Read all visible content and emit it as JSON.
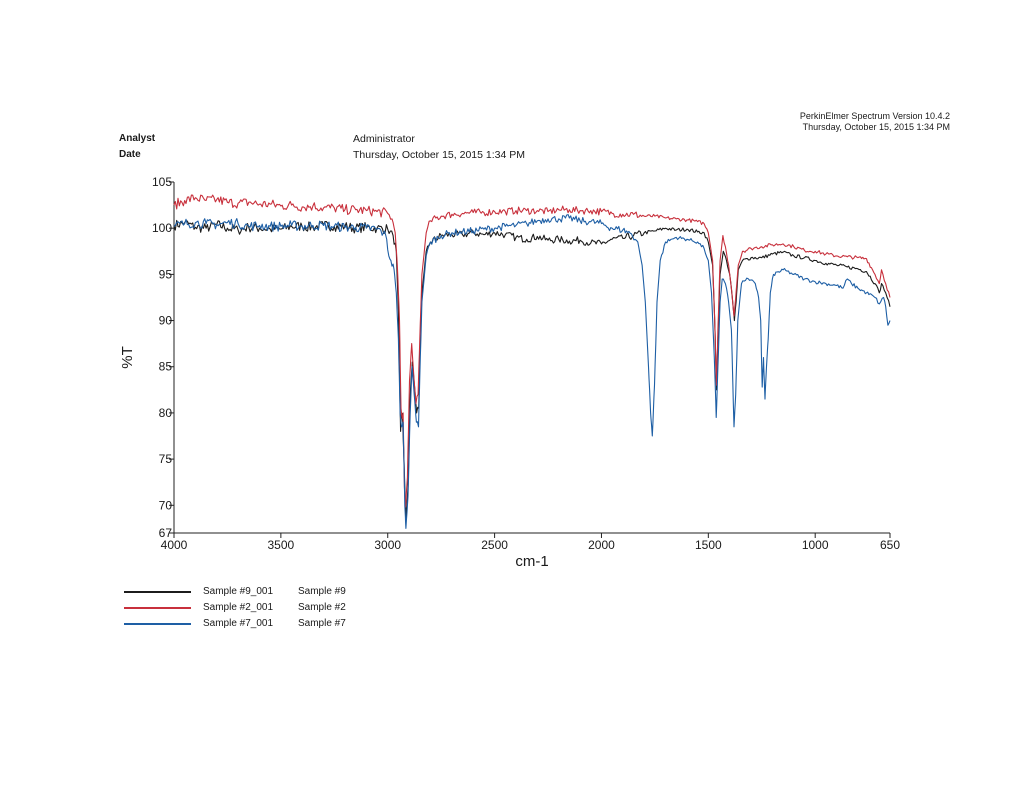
{
  "header": {
    "software": "PerkinElmer Spectrum Version 10.4.2",
    "timestamp": "Thursday, October 15, 2015 1:34 PM"
  },
  "meta": {
    "analyst_label": "Analyst",
    "analyst_value": "Administrator",
    "date_label": "Date",
    "date_value": "Thursday, October 15, 2015 1:34 PM"
  },
  "chart_data": {
    "type": "line",
    "xlabel": "cm-1",
    "ylabel": "%T",
    "xlim": [
      4000,
      650
    ],
    "ylim": [
      67,
      105
    ],
    "x_reversed": true,
    "grid": false,
    "legend_placement": "bottom-left",
    "x_ticks": [
      4000,
      3500,
      3000,
      2500,
      2000,
      1500,
      1000,
      650
    ],
    "y_ticks": [
      67,
      70,
      75,
      80,
      85,
      90,
      95,
      100,
      105
    ],
    "series": [
      {
        "name": "Sample #9_001",
        "description": "Sample #9",
        "color": "#1c1c1c",
        "points": [
          [
            4000,
            100.3
          ],
          [
            3950,
            100.6
          ],
          [
            3900,
            100.1
          ],
          [
            3850,
            100.0
          ],
          [
            3800,
            100.4
          ],
          [
            3750,
            100.0
          ],
          [
            3700,
            99.8
          ],
          [
            3650,
            100.1
          ],
          [
            3600,
            100.0
          ],
          [
            3550,
            99.9
          ],
          [
            3500,
            99.9
          ],
          [
            3450,
            100.2
          ],
          [
            3400,
            100.2
          ],
          [
            3350,
            100.1
          ],
          [
            3300,
            100.3
          ],
          [
            3250,
            100.2
          ],
          [
            3200,
            100.2
          ],
          [
            3150,
            100.0
          ],
          [
            3100,
            100.1
          ],
          [
            3050,
            100.0
          ],
          [
            3000,
            99.9
          ],
          [
            2975,
            99.2
          ],
          [
            2960,
            97.5
          ],
          [
            2950,
            91.0
          ],
          [
            2940,
            78.0
          ],
          [
            2935,
            80.0
          ],
          [
            2930,
            79.0
          ],
          [
            2920,
            72.0
          ],
          [
            2915,
            68.5
          ],
          [
            2905,
            72.0
          ],
          [
            2895,
            82.0
          ],
          [
            2885,
            85.5
          ],
          [
            2875,
            83.0
          ],
          [
            2865,
            80.0
          ],
          [
            2855,
            80.5
          ],
          [
            2850,
            86.0
          ],
          [
            2840,
            93.0
          ],
          [
            2820,
            97.5
          ],
          [
            2800,
            98.5
          ],
          [
            2750,
            99.2
          ],
          [
            2700,
            99.3
          ],
          [
            2650,
            99.3
          ],
          [
            2600,
            99.5
          ],
          [
            2550,
            99.3
          ],
          [
            2500,
            99.5
          ],
          [
            2450,
            99.3
          ],
          [
            2400,
            99.0
          ],
          [
            2350,
            98.8
          ],
          [
            2300,
            99.1
          ],
          [
            2250,
            98.7
          ],
          [
            2200,
            98.8
          ],
          [
            2150,
            98.6
          ],
          [
            2100,
            98.7
          ],
          [
            2050,
            98.4
          ],
          [
            2000,
            98.3
          ],
          [
            1950,
            98.8
          ],
          [
            1900,
            98.9
          ],
          [
            1850,
            99.2
          ],
          [
            1800,
            99.5
          ],
          [
            1750,
            99.7
          ],
          [
            1700,
            100.0
          ],
          [
            1650,
            99.8
          ],
          [
            1600,
            99.9
          ],
          [
            1550,
            99.6
          ],
          [
            1520,
            99.5
          ],
          [
            1500,
            98.5
          ],
          [
            1480,
            96.0
          ],
          [
            1470,
            90.0
          ],
          [
            1462,
            82.5
          ],
          [
            1455,
            88.0
          ],
          [
            1445,
            95.0
          ],
          [
            1430,
            97.5
          ],
          [
            1415,
            96.5
          ],
          [
            1400,
            95.0
          ],
          [
            1390,
            93.0
          ],
          [
            1378,
            90.0
          ],
          [
            1370,
            92.0
          ],
          [
            1360,
            95.5
          ],
          [
            1340,
            96.5
          ],
          [
            1300,
            96.8
          ],
          [
            1250,
            96.8
          ],
          [
            1200,
            97.2
          ],
          [
            1150,
            97.4
          ],
          [
            1100,
            97.0
          ],
          [
            1050,
            96.8
          ],
          [
            1000,
            96.5
          ],
          [
            950,
            96.2
          ],
          [
            900,
            96.0
          ],
          [
            850,
            95.8
          ],
          [
            800,
            95.6
          ],
          [
            760,
            95.3
          ],
          [
            720,
            94.0
          ],
          [
            700,
            93.0
          ],
          [
            690,
            94.0
          ],
          [
            670,
            93.0
          ],
          [
            650,
            91.5
          ]
        ]
      },
      {
        "name": "Sample #2_001",
        "description": "Sample #2",
        "color": "#c8303c",
        "points": [
          [
            4000,
            102.5
          ],
          [
            3950,
            103.0
          ],
          [
            3900,
            103.3
          ],
          [
            3850,
            103.0
          ],
          [
            3800,
            103.1
          ],
          [
            3750,
            102.8
          ],
          [
            3700,
            102.7
          ],
          [
            3650,
            102.8
          ],
          [
            3600,
            102.6
          ],
          [
            3550,
            102.6
          ],
          [
            3500,
            102.4
          ],
          [
            3450,
            102.5
          ],
          [
            3400,
            102.3
          ],
          [
            3350,
            102.4
          ],
          [
            3300,
            102.2
          ],
          [
            3250,
            102.2
          ],
          [
            3200,
            102.0
          ],
          [
            3150,
            102.0
          ],
          [
            3100,
            101.9
          ],
          [
            3050,
            101.8
          ],
          [
            3000,
            101.6
          ],
          [
            2980,
            101.0
          ],
          [
            2965,
            99.5
          ],
          [
            2955,
            96.0
          ],
          [
            2945,
            90.0
          ],
          [
            2938,
            80.5
          ],
          [
            2933,
            79.5
          ],
          [
            2928,
            80.0
          ],
          [
            2922,
            72.0
          ],
          [
            2917,
            69.8
          ],
          [
            2908,
            73.0
          ],
          [
            2898,
            83.5
          ],
          [
            2888,
            87.5
          ],
          [
            2878,
            84.0
          ],
          [
            2868,
            81.0
          ],
          [
            2858,
            82.0
          ],
          [
            2850,
            88.0
          ],
          [
            2840,
            95.0
          ],
          [
            2820,
            99.5
          ],
          [
            2800,
            100.8
          ],
          [
            2750,
            101.3
          ],
          [
            2700,
            101.5
          ],
          [
            2650,
            101.6
          ],
          [
            2600,
            101.7
          ],
          [
            2550,
            101.7
          ],
          [
            2500,
            101.8
          ],
          [
            2450,
            101.8
          ],
          [
            2400,
            101.9
          ],
          [
            2350,
            101.9
          ],
          [
            2300,
            101.9
          ],
          [
            2250,
            101.8
          ],
          [
            2200,
            102.0
          ],
          [
            2150,
            102.0
          ],
          [
            2100,
            101.9
          ],
          [
            2050,
            101.9
          ],
          [
            2000,
            101.8
          ],
          [
            1950,
            101.6
          ],
          [
            1900,
            101.5
          ],
          [
            1850,
            101.5
          ],
          [
            1800,
            101.3
          ],
          [
            1750,
            101.3
          ],
          [
            1700,
            101.1
          ],
          [
            1650,
            101.0
          ],
          [
            1600,
            100.9
          ],
          [
            1550,
            100.7
          ],
          [
            1520,
            100.5
          ],
          [
            1500,
            99.5
          ],
          [
            1480,
            96.5
          ],
          [
            1470,
            90.0
          ],
          [
            1462,
            83.0
          ],
          [
            1455,
            89.0
          ],
          [
            1445,
            96.5
          ],
          [
            1432,
            99.2
          ],
          [
            1420,
            98.0
          ],
          [
            1405,
            96.0
          ],
          [
            1392,
            93.5
          ],
          [
            1380,
            90.5
          ],
          [
            1372,
            92.5
          ],
          [
            1360,
            96.0
          ],
          [
            1340,
            97.5
          ],
          [
            1300,
            97.8
          ],
          [
            1250,
            98.0
          ],
          [
            1200,
            98.2
          ],
          [
            1150,
            98.3
          ],
          [
            1100,
            98.0
          ],
          [
            1050,
            97.6
          ],
          [
            1000,
            97.5
          ],
          [
            950,
            97.2
          ],
          [
            900,
            97.0
          ],
          [
            850,
            96.9
          ],
          [
            800,
            96.8
          ],
          [
            760,
            96.7
          ],
          [
            720,
            95.0
          ],
          [
            700,
            94.0
          ],
          [
            690,
            95.5
          ],
          [
            670,
            94.0
          ],
          [
            650,
            92.5
          ]
        ]
      },
      {
        "name": "Sample #7_001",
        "description": "Sample #7",
        "color": "#1e5fa5",
        "points": [
          [
            4000,
            100.2
          ],
          [
            3950,
            100.5
          ],
          [
            3900,
            100.6
          ],
          [
            3850,
            100.5
          ],
          [
            3800,
            100.4
          ],
          [
            3750,
            100.6
          ],
          [
            3700,
            100.5
          ],
          [
            3650,
            100.2
          ],
          [
            3600,
            100.3
          ],
          [
            3550,
            100.2
          ],
          [
            3500,
            100.2
          ],
          [
            3450,
            100.3
          ],
          [
            3400,
            100.2
          ],
          [
            3350,
            100.3
          ],
          [
            3300,
            100.3
          ],
          [
            3250,
            100.2
          ],
          [
            3200,
            100.1
          ],
          [
            3150,
            100.1
          ],
          [
            3100,
            100.0
          ],
          [
            3050,
            99.9
          ],
          [
            3020,
            99.5
          ],
          [
            3005,
            98.8
          ],
          [
            2995,
            97.0
          ],
          [
            2985,
            96.5
          ],
          [
            2970,
            95.5
          ],
          [
            2960,
            93.0
          ],
          [
            2950,
            88.0
          ],
          [
            2942,
            80.0
          ],
          [
            2935,
            78.5
          ],
          [
            2928,
            79.0
          ],
          [
            2920,
            70.0
          ],
          [
            2915,
            67.5
          ],
          [
            2905,
            71.0
          ],
          [
            2895,
            80.0
          ],
          [
            2886,
            85.0
          ],
          [
            2876,
            82.0
          ],
          [
            2866,
            79.0
          ],
          [
            2856,
            78.5
          ],
          [
            2850,
            84.0
          ],
          [
            2840,
            92.0
          ],
          [
            2820,
            97.0
          ],
          [
            2800,
            98.5
          ],
          [
            2750,
            99.2
          ],
          [
            2700,
            99.5
          ],
          [
            2650,
            99.6
          ],
          [
            2600,
            99.7
          ],
          [
            2550,
            99.9
          ],
          [
            2500,
            100.0
          ],
          [
            2450,
            100.2
          ],
          [
            2400,
            100.3
          ],
          [
            2350,
            100.5
          ],
          [
            2300,
            100.8
          ],
          [
            2250,
            101.0
          ],
          [
            2200,
            101.0
          ],
          [
            2150,
            101.1
          ],
          [
            2100,
            100.8
          ],
          [
            2050,
            100.7
          ],
          [
            2000,
            100.5
          ],
          [
            1950,
            100.0
          ],
          [
            1900,
            99.8
          ],
          [
            1860,
            99.4
          ],
          [
            1830,
            98.5
          ],
          [
            1810,
            96.0
          ],
          [
            1795,
            92.0
          ],
          [
            1780,
            85.0
          ],
          [
            1770,
            80.0
          ],
          [
            1762,
            77.5
          ],
          [
            1752,
            83.0
          ],
          [
            1740,
            92.0
          ],
          [
            1725,
            96.5
          ],
          [
            1700,
            98.5
          ],
          [
            1650,
            99.0
          ],
          [
            1600,
            98.8
          ],
          [
            1550,
            98.5
          ],
          [
            1520,
            97.8
          ],
          [
            1500,
            96.5
          ],
          [
            1485,
            93.0
          ],
          [
            1472,
            86.0
          ],
          [
            1463,
            79.5
          ],
          [
            1455,
            85.0
          ],
          [
            1445,
            92.0
          ],
          [
            1435,
            94.5
          ],
          [
            1420,
            94.0
          ],
          [
            1405,
            92.0
          ],
          [
            1392,
            89.0
          ],
          [
            1380,
            78.5
          ],
          [
            1372,
            82.0
          ],
          [
            1362,
            90.0
          ],
          [
            1345,
            94.0
          ],
          [
            1320,
            94.6
          ],
          [
            1300,
            94.4
          ],
          [
            1280,
            94.0
          ],
          [
            1265,
            92.5
          ],
          [
            1255,
            90.0
          ],
          [
            1248,
            82.8
          ],
          [
            1242,
            86.0
          ],
          [
            1235,
            81.5
          ],
          [
            1228,
            85.0
          ],
          [
            1220,
            88.0
          ],
          [
            1210,
            93.0
          ],
          [
            1195,
            95.0
          ],
          [
            1150,
            95.5
          ],
          [
            1100,
            95.0
          ],
          [
            1050,
            94.5
          ],
          [
            1000,
            94.2
          ],
          [
            950,
            94.0
          ],
          [
            900,
            93.8
          ],
          [
            870,
            93.5
          ],
          [
            850,
            94.5
          ],
          [
            830,
            94.0
          ],
          [
            800,
            93.5
          ],
          [
            760,
            93.0
          ],
          [
            720,
            92.5
          ],
          [
            700,
            91.8
          ],
          [
            680,
            92.5
          ],
          [
            670,
            91.5
          ],
          [
            660,
            89.5
          ],
          [
            650,
            90.0
          ]
        ]
      }
    ]
  }
}
